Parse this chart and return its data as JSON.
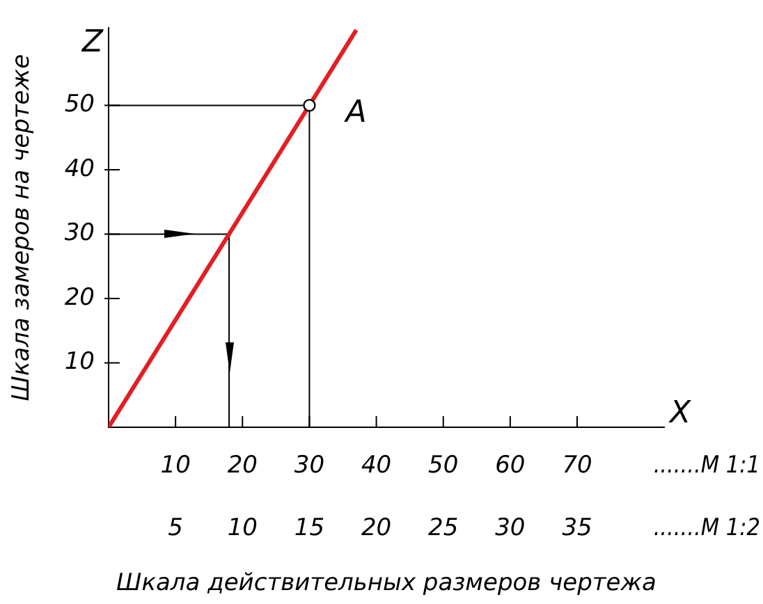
{
  "chart_data": {
    "type": "line",
    "xlabel": "Шкала действительных размеров чертежа",
    "ylabel": "Шкала замеров на чертеже",
    "xlim": [
      0,
      83
    ],
    "xticks": [
      10,
      20,
      30,
      40,
      50,
      60,
      70
    ],
    "x2lim": [
      0,
      41.5
    ],
    "x2ticks": [
      5,
      10,
      15,
      20,
      25,
      30,
      35
    ],
    "ylim": [
      0,
      62
    ],
    "yticks": [
      10,
      20,
      30,
      40,
      50
    ],
    "grid": false,
    "legend": false,
    "marker": "none",
    "line_style": "solid",
    "series": [
      {
        "color": "#e31e24",
        "x": [
          0,
          37
        ],
        "values": [
          0,
          61.7
        ]
      },
      {
        "color": "#000000",
        "x": [
          0,
          18,
          18
        ],
        "values": [
          30,
          30,
          0
        ]
      },
      {
        "color": "#000000",
        "x": [
          0,
          30,
          30
        ],
        "values": [
          50,
          50,
          0
        ]
      },
      {
        "type": "scatter",
        "color": "#000000",
        "x": [
          30
        ],
        "values": [
          50
        ],
        "marker": "circle"
      }
    ],
    "annotations": [
      "X",
      "Z",
      ".......M 1:1",
      ".......M 1:2",
      {
        "text": "A",
        "x": 30,
        "y": 50
      }
    ]
  }
}
